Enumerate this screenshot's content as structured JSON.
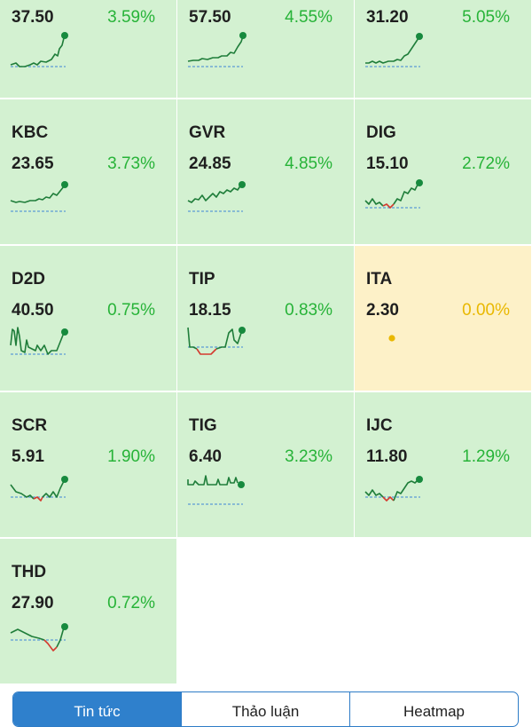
{
  "colors": {
    "up_bg": "#d3f1d1",
    "neutral_bg": "#fdf1c8",
    "up_text": "#27b338",
    "neutral_text": "#e9b800",
    "line_green": "#1f7d3a",
    "line_red": "#d43a2f",
    "baseline_blue": "#5b9bd5",
    "dot_green": "#178a3e",
    "dot_yellow": "#e9b800"
  },
  "tiles": [
    {
      "symbol": "",
      "price": "37.50",
      "change": "3.59%",
      "trend": "up",
      "spark": "riseA"
    },
    {
      "symbol": "",
      "price": "57.50",
      "change": "4.55%",
      "trend": "up",
      "spark": "riseB"
    },
    {
      "symbol": "",
      "price": "31.20",
      "change": "5.05%",
      "trend": "up",
      "spark": "riseC"
    },
    {
      "symbol": "KBC",
      "price": "23.65",
      "change": "3.73%",
      "trend": "up",
      "spark": "kbc"
    },
    {
      "symbol": "GVR",
      "price": "24.85",
      "change": "4.85%",
      "trend": "up",
      "spark": "gvr"
    },
    {
      "symbol": "DIG",
      "price": "15.10",
      "change": "2.72%",
      "trend": "up",
      "spark": "dig"
    },
    {
      "symbol": "D2D",
      "price": "40.50",
      "change": "0.75%",
      "trend": "up",
      "spark": "d2d"
    },
    {
      "symbol": "TIP",
      "price": "18.15",
      "change": "0.83%",
      "trend": "up",
      "spark": "tip"
    },
    {
      "symbol": "ITA",
      "price": "2.30",
      "change": "0.00%",
      "trend": "flat",
      "spark": "flat"
    },
    {
      "symbol": "SCR",
      "price": "5.91",
      "change": "1.90%",
      "trend": "up",
      "spark": "scr"
    },
    {
      "symbol": "TIG",
      "price": "6.40",
      "change": "3.23%",
      "trend": "up",
      "spark": "tig"
    },
    {
      "symbol": "IJC",
      "price": "11.80",
      "change": "1.29%",
      "trend": "up",
      "spark": "ijc"
    },
    {
      "symbol": "THD",
      "price": "27.90",
      "change": "0.72%",
      "trend": "up",
      "spark": "thd"
    }
  ],
  "tabs": [
    {
      "label": "Tin tức",
      "active": true
    },
    {
      "label": "Thảo luận",
      "active": false
    },
    {
      "label": "Heatmap",
      "active": false
    }
  ]
}
